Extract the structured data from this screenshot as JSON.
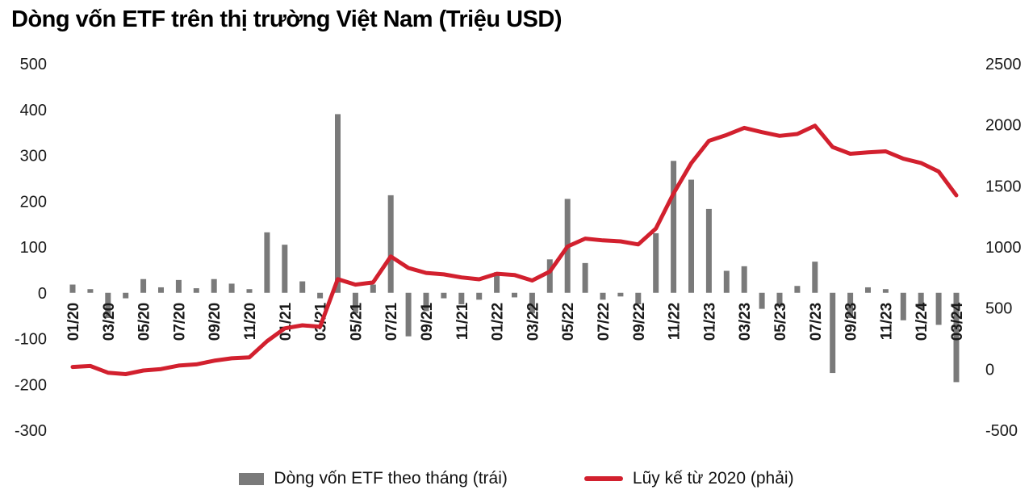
{
  "title": "Dòng vốn ETF trên thị trường Việt Nam (Triệu USD)",
  "colors": {
    "bar": "#7a7a7a",
    "line": "#d2202e",
    "text": "#1a1a1a"
  },
  "legend": [
    {
      "swatch": "bar-swatch",
      "label": "Dòng vốn ETF theo tháng (trái)"
    },
    {
      "swatch": "line-swatch",
      "label": "Lũy kế từ 2020 (phải)"
    }
  ],
  "chart_data": {
    "type": "bar",
    "subtype": "combo bar + line, dual axis",
    "title": "Dòng vốn ETF trên thị trường Việt Nam (Triệu USD)",
    "x": [
      "01/20",
      "02/20",
      "03/20",
      "04/20",
      "05/20",
      "06/20",
      "07/20",
      "08/20",
      "09/20",
      "10/20",
      "11/20",
      "12/20",
      "01/21",
      "02/21",
      "03/21",
      "04/21",
      "05/21",
      "06/21",
      "07/21",
      "08/21",
      "09/21",
      "10/21",
      "11/21",
      "12/21",
      "01/22",
      "02/22",
      "03/22",
      "04/22",
      "05/22",
      "06/22",
      "07/22",
      "08/22",
      "09/22",
      "10/22",
      "11/22",
      "12/22",
      "01/23",
      "02/23",
      "03/23",
      "04/23",
      "05/23",
      "06/23",
      "07/23",
      "08/23",
      "09/23",
      "10/23",
      "11/23",
      "12/23",
      "01/24",
      "02/24",
      "03/24"
    ],
    "x_tick_every": 2,
    "series": [
      {
        "name": "Dòng vốn ETF theo tháng (trái)",
        "type": "bar",
        "axis": "left",
        "values": [
          18,
          8,
          -55,
          -12,
          30,
          12,
          28,
          10,
          30,
          20,
          8,
          132,
          105,
          25,
          -12,
          390,
          -45,
          18,
          213,
          -95,
          -40,
          -12,
          -25,
          -15,
          45,
          -10,
          -45,
          73,
          205,
          65,
          -15,
          -8,
          -25,
          130,
          288,
          247,
          183,
          48,
          58,
          -35,
          -30,
          15,
          68,
          -175,
          -55,
          12,
          8,
          -60,
          -35,
          -70,
          -195
        ]
      },
      {
        "name": "Lũy kế từ 2020 (phải)",
        "type": "line",
        "axis": "right",
        "values": [
          18,
          26,
          -29,
          -41,
          -11,
          1,
          29,
          39,
          69,
          89,
          97,
          229,
          334,
          359,
          347,
          737,
          692,
          710,
          923,
          828,
          788,
          776,
          751,
          736,
          781,
          771,
          726,
          799,
          1004,
          1069,
          1054,
          1046,
          1021,
          1151,
          1439,
          1686,
          1869,
          1917,
          1975,
          1940,
          1910,
          1925,
          1993,
          1818,
          1763,
          1775,
          1783,
          1723,
          1688,
          1618,
          1423
        ]
      }
    ],
    "left_axis": {
      "min": -300,
      "max": 500,
      "step": 100,
      "ticks": [
        500,
        400,
        300,
        200,
        100,
        0,
        -100,
        -200,
        -300
      ]
    },
    "right_axis": {
      "min": -500,
      "max": 2500,
      "step": 500,
      "ticks": [
        2500,
        2000,
        1500,
        1000,
        500,
        0,
        -500
      ]
    },
    "grid": false,
    "legend_position": "bottom"
  }
}
